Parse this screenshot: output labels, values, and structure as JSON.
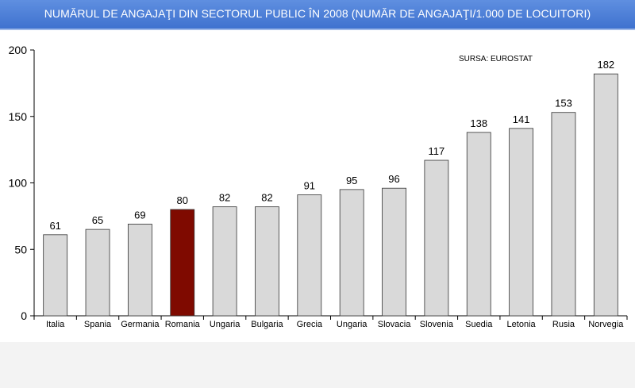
{
  "chart_data": {
    "type": "bar",
    "title": "NUMĂRUL DE ANGAJAŢI DIN SECTORUL PUBLIC ÎN 2008 (NUMĂR DE ANGAJAŢI/1.000 DE LOCUITORI)",
    "source": "SURSA: EUROSTAT",
    "categories": [
      "Italia",
      "Spania",
      "Germania",
      "Romania",
      "Ungaria",
      "Bulgaria",
      "Grecia",
      "Ungaria",
      "Slovacia",
      "Slovenia",
      "Suedia",
      "Letonia",
      "Rusia",
      "Norvegia"
    ],
    "values": [
      61,
      65,
      69,
      80,
      82,
      82,
      91,
      95,
      96,
      117,
      138,
      141,
      153,
      182
    ],
    "yticks": [
      "0",
      "50",
      "100",
      "150",
      "200"
    ],
    "ylim": [
      0,
      200
    ],
    "highlight_index": 3,
    "bar_color": "#d9d9d9",
    "highlight_color": "#7f0a00",
    "grid": false,
    "legend": "none"
  }
}
